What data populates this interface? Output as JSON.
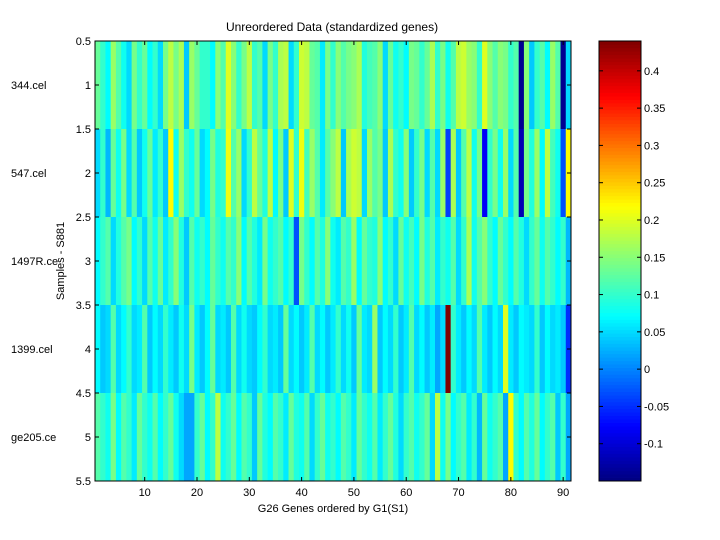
{
  "chart_data": {
    "type": "heatmap",
    "title": "Unreordered Data (standardized genes)",
    "xlabel": "G26 Genes ordered by G1(S1)",
    "ylabel": "Samples - S881",
    "xlim": [
      0.5,
      91.5
    ],
    "ylim": [
      0.5,
      5.5
    ],
    "x_ticks": [
      10,
      20,
      30,
      40,
      50,
      60,
      70,
      80,
      90
    ],
    "y_ticks": [
      0.5,
      1,
      1.5,
      2,
      2.5,
      3,
      3.5,
      4,
      4.5,
      5,
      5.5
    ],
    "y_tick_labels": [
      "0.5",
      "1",
      "1.5",
      "2",
      "2.5",
      "3",
      "3.5",
      "4",
      "4.5",
      "5",
      "5.5"
    ],
    "row_labels": [
      "344.cel",
      "547.cel",
      "1497R.ce",
      "1399.cel",
      "ge205.ce"
    ],
    "colormap": "jet",
    "clim": [
      -0.15,
      0.44
    ],
    "colorbar_ticks": [
      -0.1,
      -0.05,
      0,
      0.05,
      0.1,
      0.15,
      0.2,
      0.25,
      0.3,
      0.35,
      0.4
    ],
    "colorbar_tick_labels": [
      "-0.1",
      "-0.05",
      "0",
      "0.05",
      "0.1",
      "0.15",
      "0.2",
      "0.25",
      "0.3",
      "0.35",
      "0.4"
    ],
    "values": [
      [
        0.13,
        0.1,
        0.07,
        0.16,
        0.12,
        0.08,
        0.05,
        0.14,
        0.1,
        0.13,
        0.07,
        0.1,
        0.05,
        0.14,
        0.18,
        0.14,
        0.17,
        0.04,
        0.16,
        0.13,
        0.1,
        0.1,
        0.07,
        0.15,
        0.12,
        0.2,
        0.15,
        0.1,
        0.14,
        0.18,
        0.1,
        0.12,
        0.05,
        0.14,
        0.1,
        0.17,
        0.18,
        0.05,
        0.1,
        0.19,
        0.18,
        0.13,
        0.12,
        0.06,
        0.14,
        0.1,
        0.15,
        0.12,
        0.14,
        0.15,
        0.17,
        0.09,
        0.11,
        0.12,
        0.15,
        0.05,
        0.13,
        0.08,
        0.1,
        0.07,
        0.14,
        0.13,
        0.1,
        0.13,
        0.17,
        0.1,
        0.14,
        0.08,
        0.12,
        0.18,
        0.19,
        0.16,
        0.15,
        0.1,
        0.2,
        0.15,
        0.12,
        0.15,
        0.14,
        0.1,
        0.12,
        -0.14,
        0.15,
        0.04,
        0.1,
        0.12,
        0.07,
        0.16,
        0.12,
        -0.14,
        0.05
      ],
      [
        0.05,
        0.1,
        0.03,
        0.13,
        0.08,
        0.14,
        0.05,
        0.12,
        0.04,
        0.08,
        0.13,
        0.06,
        0.1,
        0.04,
        0.22,
        0.08,
        0.16,
        0.1,
        0.08,
        0.13,
        0.05,
        0.07,
        0.14,
        0.09,
        0.1,
        0.21,
        0.12,
        0.16,
        0.05,
        0.1,
        0.18,
        0.13,
        0.09,
        0.18,
        0.07,
        0.14,
        0.04,
        0.2,
        0.1,
        0.21,
        0.11,
        0.16,
        0.12,
        0.06,
        0.12,
        0.15,
        0.18,
        0.04,
        0.17,
        0.19,
        0.18,
        0.05,
        0.16,
        0.12,
        0.14,
        0.04,
        0.17,
        0.1,
        0.08,
        0.15,
        0.04,
        0.1,
        0.14,
        0.05,
        0.12,
        0.05,
        0.16,
        -0.04,
        0.17,
        0.04,
        0.12,
        0.18,
        0.08,
        0.14,
        -0.08,
        0.1,
        0.14,
        0.08,
        0.16,
        0.05,
        0.12,
        -0.12,
        0.14,
        0.09,
        0.16,
        0.07,
        0.18,
        0.11,
        0.08,
        -0.03,
        0.22
      ],
      [
        0.07,
        0.1,
        0.12,
        0.05,
        0.09,
        0.12,
        0.14,
        0.07,
        0.1,
        0.05,
        0.12,
        0.08,
        0.13,
        0.06,
        0.1,
        0.15,
        0.09,
        0.04,
        0.12,
        0.08,
        0.1,
        0.07,
        0.13,
        0.1,
        0.08,
        0.12,
        0.1,
        0.15,
        0.07,
        0.12,
        0.09,
        0.06,
        0.14,
        0.08,
        0.1,
        0.12,
        0.07,
        0.1,
        -0.03,
        0.14,
        0.1,
        0.07,
        0.12,
        0.09,
        0.15,
        0.08,
        0.06,
        0.12,
        0.1,
        0.16,
        0.07,
        0.13,
        0.1,
        0.09,
        0.15,
        0.07,
        0.1,
        0.05,
        0.13,
        0.08,
        0.11,
        0.07,
        0.14,
        0.09,
        0.12,
        0.06,
        0.1,
        0.08,
        0.12,
        0.05,
        0.1,
        0.17,
        0.08,
        0.12,
        0.15,
        0.1,
        0.07,
        0.13,
        0.1,
        0.07,
        0.12,
        0.09,
        0.05,
        0.1,
        0.13,
        0.08,
        0.12,
        0.1,
        0.07,
        0.1,
        0.03
      ],
      [
        0.07,
        0.04,
        0.05,
        0.12,
        0.05,
        0.07,
        0.1,
        0.05,
        0.06,
        0.12,
        0.04,
        0.07,
        0.05,
        0.1,
        0.06,
        0.04,
        0.08,
        0.05,
        0.14,
        0.06,
        0.04,
        0.07,
        0.13,
        0.05,
        0.06,
        0.04,
        0.12,
        0.05,
        0.08,
        0.05,
        0.04,
        0.07,
        0.1,
        0.05,
        0.06,
        0.04,
        0.13,
        0.05,
        0.07,
        0.04,
        0.06,
        0.12,
        0.05,
        0.07,
        0.04,
        0.06,
        0.1,
        0.05,
        0.08,
        0.04,
        0.13,
        0.06,
        0.05,
        0.16,
        0.04,
        0.07,
        0.05,
        0.1,
        0.04,
        0.06,
        0.12,
        0.05,
        0.07,
        0.04,
        0.06,
        0.02,
        0.05,
        0.44,
        0.1,
        0.06,
        0.04,
        0.07,
        0.05,
        0.12,
        0.06,
        0.04,
        0.07,
        0.05,
        0.2,
        0.06,
        0.04,
        0.07,
        0.06,
        0.05,
        0.1,
        0.04,
        0.07,
        0.05,
        0.06,
        0.04,
        -0.05
      ],
      [
        0.12,
        0.1,
        0.08,
        0.14,
        0.07,
        0.12,
        0.1,
        0.06,
        0.13,
        0.1,
        0.08,
        0.12,
        0.07,
        0.1,
        0.13,
        0.08,
        0.05,
        0.02,
        0.02,
        0.1,
        0.13,
        0.07,
        0.1,
        0.18,
        0.08,
        0.1,
        0.13,
        0.07,
        0.12,
        0.1,
        0.04,
        0.13,
        0.09,
        0.07,
        0.12,
        0.1,
        0.06,
        0.13,
        0.09,
        0.08,
        0.12,
        0.05,
        0.1,
        0.13,
        0.08,
        0.1,
        0.07,
        0.12,
        0.1,
        0.06,
        0.13,
        0.1,
        0.08,
        0.12,
        0.06,
        0.1,
        0.13,
        0.09,
        0.05,
        0.1,
        0.12,
        0.08,
        0.1,
        0.13,
        0.05,
        0.18,
        0.08,
        0.14,
        0.07,
        0.1,
        0.12,
        0.06,
        0.1,
        0.03,
        0.13,
        0.08,
        0.1,
        0.12,
        0.02,
        0.22,
        0.1,
        0.07,
        0.12,
        0.09,
        0.13,
        0.07,
        0.1,
        0.12,
        0.04,
        0.1,
        0.02
      ]
    ]
  }
}
